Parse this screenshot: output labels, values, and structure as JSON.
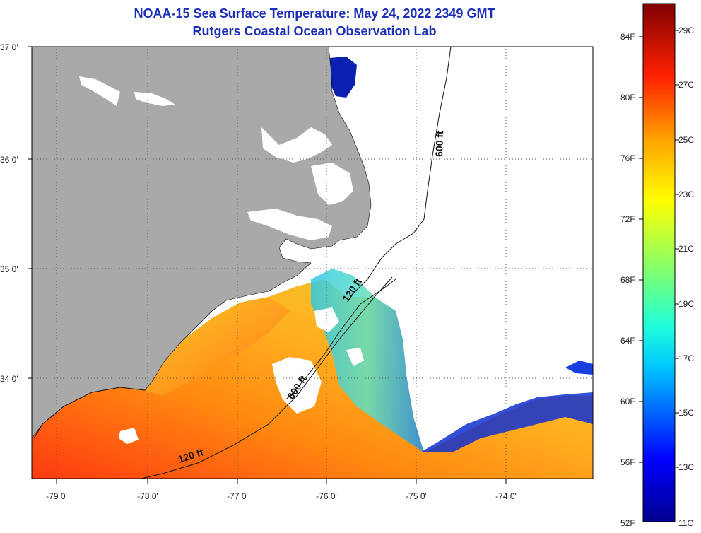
{
  "title": "NOAA-15 Sea Surface Temperature:  May 24, 2022 2349 GMT",
  "subtitle": "Rutgers Coastal Ocean Observation Lab",
  "map": {
    "lat_labels": [
      "37 0'",
      "36 0'",
      "35 0'",
      "34 0'"
    ],
    "lon_labels": [
      "-79 0'",
      "-78 0'",
      "-77 0'",
      "-76 0'",
      "-75 0'",
      "-74 0'"
    ],
    "contours": [
      {
        "label": "600 ft"
      },
      {
        "label": "120 ft"
      },
      {
        "label": "600 ft"
      },
      {
        "label": "120 ft"
      }
    ],
    "colors": {
      "land": "#a9a9a9",
      "no_data": "#ffffff",
      "grid": "#555555"
    }
  },
  "colorbar": {
    "fahrenheit": [
      "84F",
      "80F",
      "76F",
      "72F",
      "68F",
      "64F",
      "60F",
      "56F",
      "52F"
    ],
    "celsius": [
      "29C",
      "27C",
      "25C",
      "23C",
      "21C",
      "19C",
      "17C",
      "15C",
      "13C",
      "11C"
    ]
  }
}
